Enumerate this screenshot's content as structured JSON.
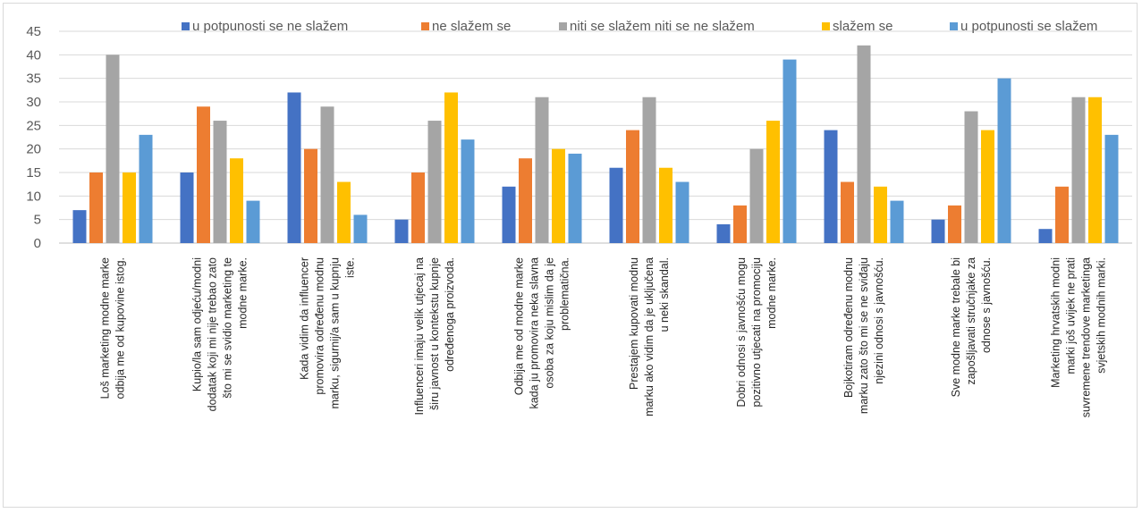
{
  "chart_data": {
    "type": "bar",
    "ylim": [
      0,
      45
    ],
    "yticks": [
      0,
      5,
      10,
      15,
      20,
      25,
      30,
      35,
      40,
      45
    ],
    "grid": true,
    "legend_position": "top",
    "categories": [
      [
        "Loš marketing modne marke",
        "odbija me od kupovine istog."
      ],
      [
        "Kupio/la sam odjeću/modni",
        "dodatak koji mi nije trebao zato",
        "što mi se svidio marketing te",
        "modne marke."
      ],
      [
        "Kada vidim da influencer",
        "promovira određenu modnu",
        "marku, sigurnij/a sam u kupnju",
        "iste."
      ],
      [
        "Influenceri imaju velik utjecaj na",
        "širu javnost u kontekstu kupnje",
        "određenoga proizvoda."
      ],
      [
        "Odbija me od modne marke",
        "kada ju promovira neka slavna",
        "osoba za koju mislim da je",
        "problematična."
      ],
      [
        "Prestajem kupovati modnu",
        "marku ako vidim da je uključena",
        "u neki skandal."
      ],
      [
        "Dobri odnosi s javnošću mogu",
        "pozitivno utjecati na promociju",
        "modne marke."
      ],
      [
        "Bojkotiram određenu modnu",
        "marku zato što mi se ne sviđaju",
        "njezini odnosi s javnošću."
      ],
      [
        "Sve modne marke trebale bi",
        "zapošljavati stručnjake za",
        "odnose s javnošću."
      ],
      [
        "Marketing hrvatskih modni",
        "marki još uvijek ne prati",
        "suvremene trendove marketinga",
        "svjetskih modnih marki."
      ]
    ],
    "series": [
      {
        "name": "u potpunosti se ne slažem",
        "color": "#4472c4",
        "values": [
          7,
          15,
          32,
          5,
          12,
          16,
          4,
          24,
          5,
          3
        ]
      },
      {
        "name": "ne slažem se",
        "color": "#ed7d31",
        "values": [
          15,
          29,
          20,
          15,
          18,
          24,
          8,
          13,
          8,
          12
        ]
      },
      {
        "name": "niti se slažem niti se ne slažem",
        "color": "#a5a5a5",
        "values": [
          40,
          26,
          29,
          26,
          31,
          31,
          20,
          42,
          28,
          31
        ]
      },
      {
        "name": "slažem se",
        "color": "#ffc000",
        "values": [
          15,
          18,
          13,
          32,
          20,
          16,
          26,
          12,
          24,
          31
        ]
      },
      {
        "name": "u potpunosti se slažem",
        "color": "#5b9bd5",
        "values": [
          23,
          9,
          6,
          22,
          19,
          13,
          39,
          9,
          35,
          23
        ]
      }
    ]
  }
}
